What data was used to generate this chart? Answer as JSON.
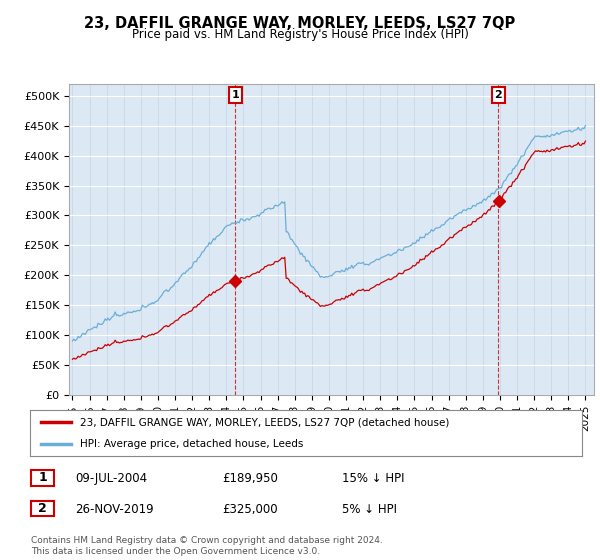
{
  "title": "23, DAFFIL GRANGE WAY, MORLEY, LEEDS, LS27 7QP",
  "subtitle": "Price paid vs. HM Land Registry's House Price Index (HPI)",
  "ylabel_ticks": [
    "£0",
    "£50K",
    "£100K",
    "£150K",
    "£200K",
    "£250K",
    "£300K",
    "£350K",
    "£400K",
    "£450K",
    "£500K"
  ],
  "ytick_values": [
    0,
    50000,
    100000,
    150000,
    200000,
    250000,
    300000,
    350000,
    400000,
    450000,
    500000
  ],
  "ylim": [
    0,
    520000
  ],
  "xlim_start": 1994.8,
  "xlim_end": 2025.5,
  "hpi_color": "#6baed6",
  "price_color": "#cc0000",
  "bg_color": "#dce9f5",
  "legend_label_red": "23, DAFFIL GRANGE WAY, MORLEY, LEEDS, LS27 7QP (detached house)",
  "legend_label_blue": "HPI: Average price, detached house, Leeds",
  "sale1_t": 2004.52,
  "sale1_p": 189950,
  "sale2_t": 2019.9,
  "sale2_p": 325000,
  "annotation1_label": "1",
  "annotation2_label": "2",
  "table_rows": [
    [
      "1",
      "09-JUL-2004",
      "£189,950",
      "15% ↓ HPI"
    ],
    [
      "2",
      "26-NOV-2019",
      "£325,000",
      "5% ↓ HPI"
    ]
  ],
  "footer": "Contains HM Land Registry data © Crown copyright and database right 2024.\nThis data is licensed under the Open Government Licence v3.0.",
  "xtick_years": [
    1995,
    1996,
    1997,
    1998,
    1999,
    2000,
    2001,
    2002,
    2003,
    2004,
    2005,
    2006,
    2007,
    2008,
    2009,
    2010,
    2011,
    2012,
    2013,
    2014,
    2015,
    2016,
    2017,
    2018,
    2019,
    2020,
    2021,
    2022,
    2023,
    2024,
    2025
  ]
}
